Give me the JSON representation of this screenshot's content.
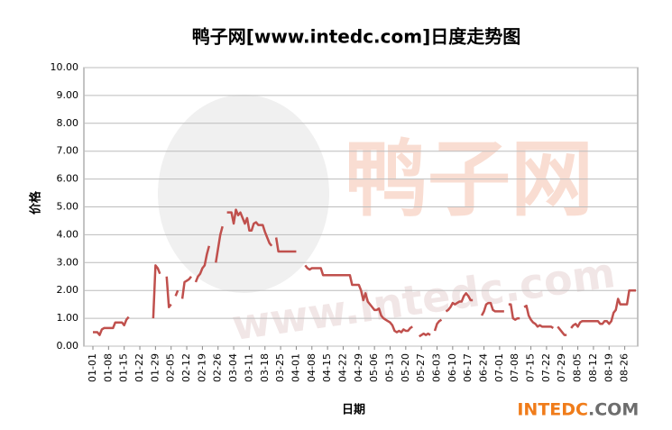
{
  "chart_data": {
    "type": "line",
    "title": "鸭子网[www.intedc.com]日度走势图",
    "y_label": "价格",
    "x_label": "日期",
    "watermark": "鸭子网",
    "watermark_url": "www.intedc.com",
    "brand_main": "INTEDC",
    "brand_suffix": ".COM",
    "ylim": [
      0,
      10
    ],
    "yticks": [
      {
        "value": 0,
        "label": "0.00"
      },
      {
        "value": 1,
        "label": "1.00"
      },
      {
        "value": 2,
        "label": "2.00"
      },
      {
        "value": 3,
        "label": "3.00"
      },
      {
        "value": 4,
        "label": "4.00"
      },
      {
        "value": 5,
        "label": "5.00"
      },
      {
        "value": 6,
        "label": "6.00"
      },
      {
        "value": 7,
        "label": "7.00"
      },
      {
        "value": 8,
        "label": "8.00"
      },
      {
        "value": 9,
        "label": "9.00"
      },
      {
        "value": 10,
        "label": "10.00"
      }
    ],
    "grid": true,
    "color": "#c0504d",
    "categories": [
      "01-01",
      null,
      null,
      null,
      null,
      null,
      null,
      "01-08",
      null,
      null,
      null,
      null,
      null,
      null,
      "01-15",
      null,
      null,
      null,
      null,
      null,
      null,
      "01-22",
      null,
      null,
      null,
      null,
      null,
      null,
      "01-29",
      null,
      null,
      null,
      null,
      null,
      null,
      "02-05",
      null,
      null,
      null,
      null,
      null,
      null,
      "02-12",
      null,
      null,
      null,
      null,
      null,
      null,
      "02-19",
      null,
      null,
      null,
      null,
      null,
      null,
      "02-26",
      null,
      null,
      null,
      null,
      null,
      null,
      "03-04",
      null,
      null,
      null,
      null,
      null,
      null,
      "03-11",
      null,
      null,
      null,
      null,
      null,
      null,
      "03-18",
      null,
      null,
      null,
      null,
      null,
      null,
      "03-25",
      null,
      null,
      null,
      null,
      null,
      null,
      "04-01",
      null,
      null,
      null,
      null,
      null,
      null,
      "04-08",
      null,
      null,
      null,
      null,
      null,
      null,
      "04-15",
      null,
      null,
      null,
      null,
      null,
      null,
      "04-22",
      null,
      null,
      null,
      null,
      null,
      null,
      "04-29",
      null,
      null,
      null,
      null,
      null,
      null,
      "05-06",
      null,
      null,
      null,
      null,
      null,
      null,
      "05-13",
      null,
      null,
      null,
      null,
      null,
      null,
      "05-20",
      null,
      null,
      null,
      null,
      null,
      null,
      "05-27",
      null,
      null,
      null,
      null,
      null,
      null,
      "06-03",
      null,
      null,
      null,
      null,
      null,
      null,
      "06-10",
      null,
      null,
      null,
      null,
      null,
      null,
      "06-17",
      null,
      null,
      null,
      null,
      null,
      null,
      "06-24",
      null,
      null,
      null,
      null,
      null,
      null,
      "07-01",
      null,
      null,
      null,
      null,
      null,
      null,
      "07-08",
      null,
      null,
      null,
      null,
      null,
      null,
      "07-15",
      null,
      null,
      null,
      null,
      null,
      null,
      "07-22",
      null,
      null,
      null,
      null,
      null,
      null,
      "07-29",
      null,
      null,
      null,
      null,
      null,
      null,
      "08-05",
      null,
      null,
      null,
      null,
      null,
      null,
      "08-12",
      null,
      null,
      null,
      null,
      null,
      null,
      "08-19",
      null,
      null,
      null,
      null,
      null,
      null,
      "08-26",
      null,
      null,
      null,
      null,
      null
    ],
    "values": [
      0.5,
      0.5,
      0.5,
      0.4,
      0.6,
      0.65,
      0.65,
      0.65,
      0.65,
      0.65,
      0.85,
      0.85,
      0.85,
      0.85,
      0.75,
      0.95,
      1.05,
      null,
      null,
      null,
      null,
      null,
      null,
      null,
      null,
      null,
      null,
      1.0,
      2.9,
      2.8,
      2.6,
      null,
      null,
      2.5,
      1.4,
      1.5,
      null,
      1.8,
      2.0,
      null,
      1.7,
      2.3,
      2.35,
      2.4,
      2.5,
      null,
      2.3,
      2.5,
      2.6,
      2.8,
      2.9,
      3.3,
      3.6,
      null,
      null,
      3.0,
      3.5,
      4.0,
      4.3,
      null,
      4.8,
      4.8,
      4.8,
      4.4,
      4.9,
      4.7,
      4.8,
      4.6,
      4.4,
      4.6,
      4.15,
      4.15,
      4.4,
      4.45,
      4.35,
      4.35,
      4.35,
      4.1,
      3.9,
      3.7,
      3.6,
      null,
      3.9,
      3.4,
      3.4,
      3.4,
      3.4,
      3.4,
      3.4,
      3.4,
      3.4,
      3.4,
      null,
      null,
      null,
      2.9,
      2.8,
      2.75,
      2.8,
      2.8,
      2.8,
      2.8,
      2.8,
      2.55,
      2.55,
      2.55,
      2.55,
      2.55,
      2.55,
      2.55,
      2.55,
      2.55,
      2.55,
      2.55,
      2.55,
      2.55,
      2.2,
      2.2,
      2.2,
      2.2,
      2.0,
      1.65,
      1.9,
      1.6,
      1.5,
      1.4,
      1.3,
      1.3,
      1.35,
      1.1,
      1.0,
      0.95,
      0.9,
      0.85,
      0.75,
      0.55,
      0.5,
      0.55,
      0.5,
      0.6,
      0.55,
      0.55,
      0.65,
      0.7,
      null,
      null,
      0.35,
      0.4,
      0.45,
      0.4,
      0.45,
      0.4,
      null,
      0.55,
      0.8,
      0.9,
      0.95,
      null,
      1.25,
      1.3,
      1.4,
      1.55,
      1.5,
      1.55,
      1.6,
      1.6,
      1.8,
      1.9,
      1.8,
      1.65,
      1.65,
      null,
      null,
      null,
      1.1,
      1.25,
      1.5,
      1.55,
      1.55,
      1.3,
      1.25,
      1.25,
      1.25,
      1.25,
      1.25,
      null,
      1.5,
      1.5,
      1.0,
      0.95,
      1.0,
      1.0,
      null,
      1.4,
      1.45,
      1.1,
      0.95,
      0.85,
      0.8,
      0.7,
      0.75,
      0.7,
      0.7,
      0.7,
      0.7,
      0.7,
      0.65,
      null,
      0.7,
      0.6,
      0.5,
      0.4,
      0.4,
      null,
      0.65,
      0.75,
      0.8,
      0.7,
      0.85,
      0.9,
      0.9,
      0.9,
      0.9,
      0.9,
      0.9,
      0.9,
      0.9,
      0.8,
      0.8,
      0.9,
      0.9,
      0.8,
      0.9,
      1.2,
      1.3,
      1.7,
      1.5,
      1.5,
      1.5,
      1.5,
      2.0,
      2.0,
      2.0,
      2.0
    ]
  }
}
